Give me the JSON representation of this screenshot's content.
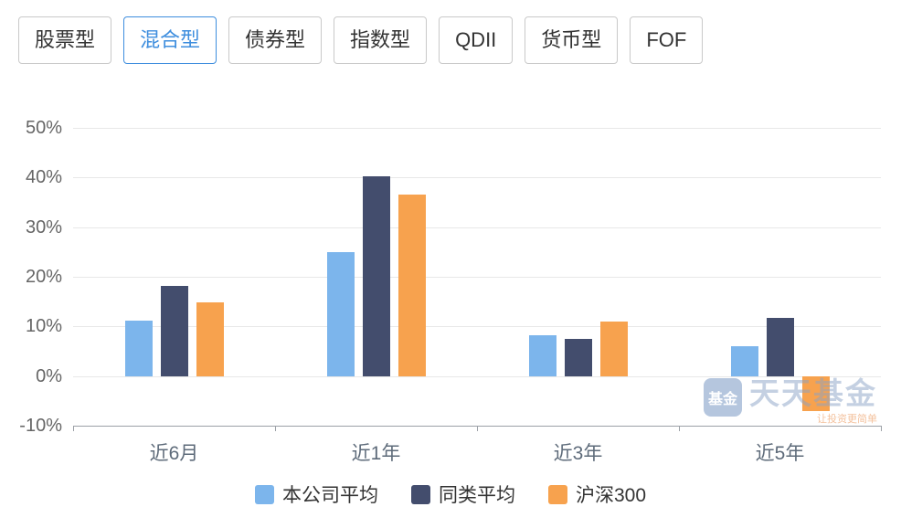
{
  "tabs": {
    "active_index": 1,
    "items": [
      {
        "label": "股票型"
      },
      {
        "label": "混合型"
      },
      {
        "label": "债券型"
      },
      {
        "label": "指数型"
      },
      {
        "label": "QDII"
      },
      {
        "label": "货币型"
      },
      {
        "label": "FOF"
      }
    ]
  },
  "chart_data": {
    "type": "bar",
    "title": "",
    "categories": [
      "近6月",
      "近1年",
      "近3年",
      "近5年"
    ],
    "series": [
      {
        "name": "本公司平均",
        "color": "#7CB5EC",
        "values": [
          11.2,
          25.0,
          8.3,
          6.1
        ]
      },
      {
        "name": "同类平均",
        "color": "#434D6D",
        "values": [
          18.2,
          40.3,
          7.5,
          11.7
        ]
      },
      {
        "name": "沪深300",
        "color": "#F7A24E",
        "values": [
          14.8,
          36.5,
          11.0,
          -7.0
        ]
      }
    ],
    "ylim": [
      -10,
      50
    ],
    "ytick_step": 10,
    "ytick_labels": [
      "50%",
      "40%",
      "30%",
      "20%",
      "10%",
      "0%",
      "-10%"
    ],
    "grid": true,
    "legend_position": "bottom"
  },
  "legend": {
    "items": [
      {
        "label": "本公司平均"
      },
      {
        "label": "同类平均"
      },
      {
        "label": "沪深300"
      }
    ]
  },
  "watermark": {
    "logo_text": "基金",
    "title": "天天基金",
    "tagline": "让投资更简单"
  },
  "colors": {
    "tab_active": "#3E8EDE",
    "grid_line": "#E8E8E8",
    "axis_line": "#9BA0A6",
    "axis_label": "#666666"
  }
}
